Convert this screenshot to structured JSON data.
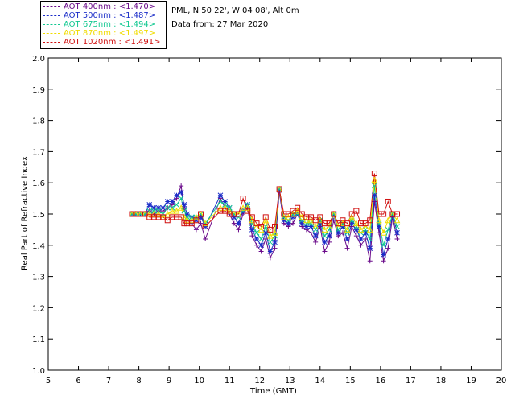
{
  "info": {
    "line1": "PML, N 50 22', W 04 08', Alt 0m",
    "line2": "Data from: 27 Mar 2020"
  },
  "legend": [
    {
      "label": "AOT  400nm : <1.470>",
      "color": "#6a0a8a"
    },
    {
      "label": "AOT  500nm : <1.487>",
      "color": "#1a2cc8"
    },
    {
      "label": "AOT  675nm : <1.494>",
      "color": "#10c890"
    },
    {
      "label": "AOT  870nm : <1.497>",
      "color": "#f0dc00"
    },
    {
      "label": "AOT 1020nm : <1.491>",
      "color": "#d01010"
    }
  ],
  "chart_data": {
    "type": "line",
    "xlabel": "Time (GMT)",
    "ylabel": "Real Part of Refractive Index",
    "xlim": [
      5,
      20
    ],
    "ylim": [
      1.0,
      2.0
    ],
    "xticks": [
      "5",
      "6",
      "7",
      "8",
      "9",
      "10",
      "11",
      "12",
      "13",
      "14",
      "15",
      "16",
      "17",
      "18",
      "19",
      "20"
    ],
    "yticks": [
      "1.0",
      "1.1",
      "1.2",
      "1.3",
      "1.4",
      "1.5",
      "1.6",
      "1.7",
      "1.8",
      "1.9",
      "2.0"
    ],
    "grid": false,
    "x": [
      7.77,
      7.9,
      8.05,
      8.2,
      8.35,
      8.5,
      8.65,
      8.8,
      8.95,
      9.1,
      9.25,
      9.4,
      9.5,
      9.6,
      9.75,
      9.9,
      10.05,
      10.2,
      10.7,
      10.85,
      11.0,
      11.15,
      11.3,
      11.45,
      11.6,
      11.75,
      11.9,
      12.05,
      12.2,
      12.35,
      12.5,
      12.65,
      12.8,
      12.95,
      13.1,
      13.25,
      13.4,
      13.55,
      13.7,
      13.85,
      14.0,
      14.15,
      14.3,
      14.45,
      14.6,
      14.75,
      14.9,
      15.05,
      15.2,
      15.35,
      15.5,
      15.65,
      15.8,
      15.95,
      16.1,
      16.25,
      16.4,
      16.55
    ],
    "series": [
      {
        "name": "AOT 400nm",
        "color": "#6a0a8a",
        "marker": "+",
        "values": [
          1.5,
          1.5,
          1.5,
          1.5,
          1.51,
          1.5,
          1.51,
          1.51,
          1.52,
          1.53,
          1.55,
          1.59,
          1.52,
          1.48,
          1.47,
          1.45,
          1.47,
          1.42,
          1.55,
          1.52,
          1.5,
          1.47,
          1.45,
          1.5,
          1.52,
          1.43,
          1.4,
          1.38,
          1.42,
          1.36,
          1.39,
          1.57,
          1.47,
          1.46,
          1.47,
          1.5,
          1.46,
          1.45,
          1.44,
          1.41,
          1.46,
          1.38,
          1.41,
          1.48,
          1.43,
          1.44,
          1.39,
          1.46,
          1.43,
          1.4,
          1.42,
          1.35,
          1.54,
          1.44,
          1.35,
          1.39,
          1.49,
          1.42
        ]
      },
      {
        "name": "AOT 500nm",
        "color": "#1a2cc8",
        "marker": "*",
        "values": [
          1.5,
          1.5,
          1.5,
          1.5,
          1.53,
          1.52,
          1.52,
          1.52,
          1.54,
          1.54,
          1.56,
          1.57,
          1.53,
          1.5,
          1.49,
          1.48,
          1.49,
          1.46,
          1.56,
          1.54,
          1.52,
          1.49,
          1.47,
          1.51,
          1.53,
          1.45,
          1.42,
          1.4,
          1.44,
          1.38,
          1.41,
          1.58,
          1.48,
          1.47,
          1.49,
          1.5,
          1.47,
          1.46,
          1.46,
          1.43,
          1.47,
          1.41,
          1.43,
          1.5,
          1.44,
          1.46,
          1.42,
          1.47,
          1.45,
          1.42,
          1.44,
          1.39,
          1.56,
          1.46,
          1.37,
          1.42,
          1.5,
          1.44
        ]
      },
      {
        "name": "AOT 675nm",
        "color": "#10c890",
        "marker": "x",
        "values": [
          1.5,
          1.5,
          1.5,
          1.5,
          1.51,
          1.51,
          1.51,
          1.5,
          1.52,
          1.52,
          1.53,
          1.55,
          1.51,
          1.49,
          1.49,
          1.49,
          1.5,
          1.47,
          1.54,
          1.53,
          1.52,
          1.5,
          1.49,
          1.51,
          1.53,
          1.47,
          1.44,
          1.42,
          1.46,
          1.41,
          1.43,
          1.58,
          1.49,
          1.48,
          1.5,
          1.5,
          1.48,
          1.47,
          1.47,
          1.45,
          1.48,
          1.43,
          1.45,
          1.5,
          1.45,
          1.47,
          1.44,
          1.48,
          1.46,
          1.44,
          1.45,
          1.42,
          1.59,
          1.47,
          1.4,
          1.45,
          1.5,
          1.46
        ]
      },
      {
        "name": "AOT 870nm",
        "color": "#f0dc00",
        "marker": "triangle",
        "values": [
          1.5,
          1.5,
          1.5,
          1.5,
          1.5,
          1.5,
          1.5,
          1.49,
          1.5,
          1.51,
          1.51,
          1.52,
          1.49,
          1.48,
          1.48,
          1.49,
          1.5,
          1.47,
          1.52,
          1.52,
          1.51,
          1.5,
          1.5,
          1.52,
          1.52,
          1.48,
          1.46,
          1.45,
          1.48,
          1.43,
          1.44,
          1.58,
          1.49,
          1.49,
          1.5,
          1.51,
          1.49,
          1.48,
          1.48,
          1.46,
          1.48,
          1.45,
          1.46,
          1.5,
          1.46,
          1.47,
          1.45,
          1.49,
          1.47,
          1.45,
          1.46,
          1.45,
          1.61,
          1.48,
          1.44,
          1.48,
          1.5,
          1.48
        ]
      },
      {
        "name": "AOT 1020nm",
        "color": "#d01010",
        "marker": "square",
        "values": [
          1.5,
          1.5,
          1.5,
          1.5,
          1.49,
          1.49,
          1.49,
          1.49,
          1.48,
          1.49,
          1.49,
          1.49,
          1.47,
          1.47,
          1.47,
          1.48,
          1.5,
          1.46,
          1.51,
          1.51,
          1.5,
          1.5,
          1.5,
          1.55,
          1.51,
          1.49,
          1.47,
          1.46,
          1.49,
          1.45,
          1.46,
          1.58,
          1.5,
          1.5,
          1.51,
          1.52,
          1.5,
          1.49,
          1.49,
          1.48,
          1.49,
          1.47,
          1.47,
          1.5,
          1.47,
          1.48,
          1.47,
          1.5,
          1.51,
          1.47,
          1.47,
          1.48,
          1.63,
          1.5,
          1.5,
          1.54,
          1.5,
          1.5
        ]
      }
    ]
  }
}
